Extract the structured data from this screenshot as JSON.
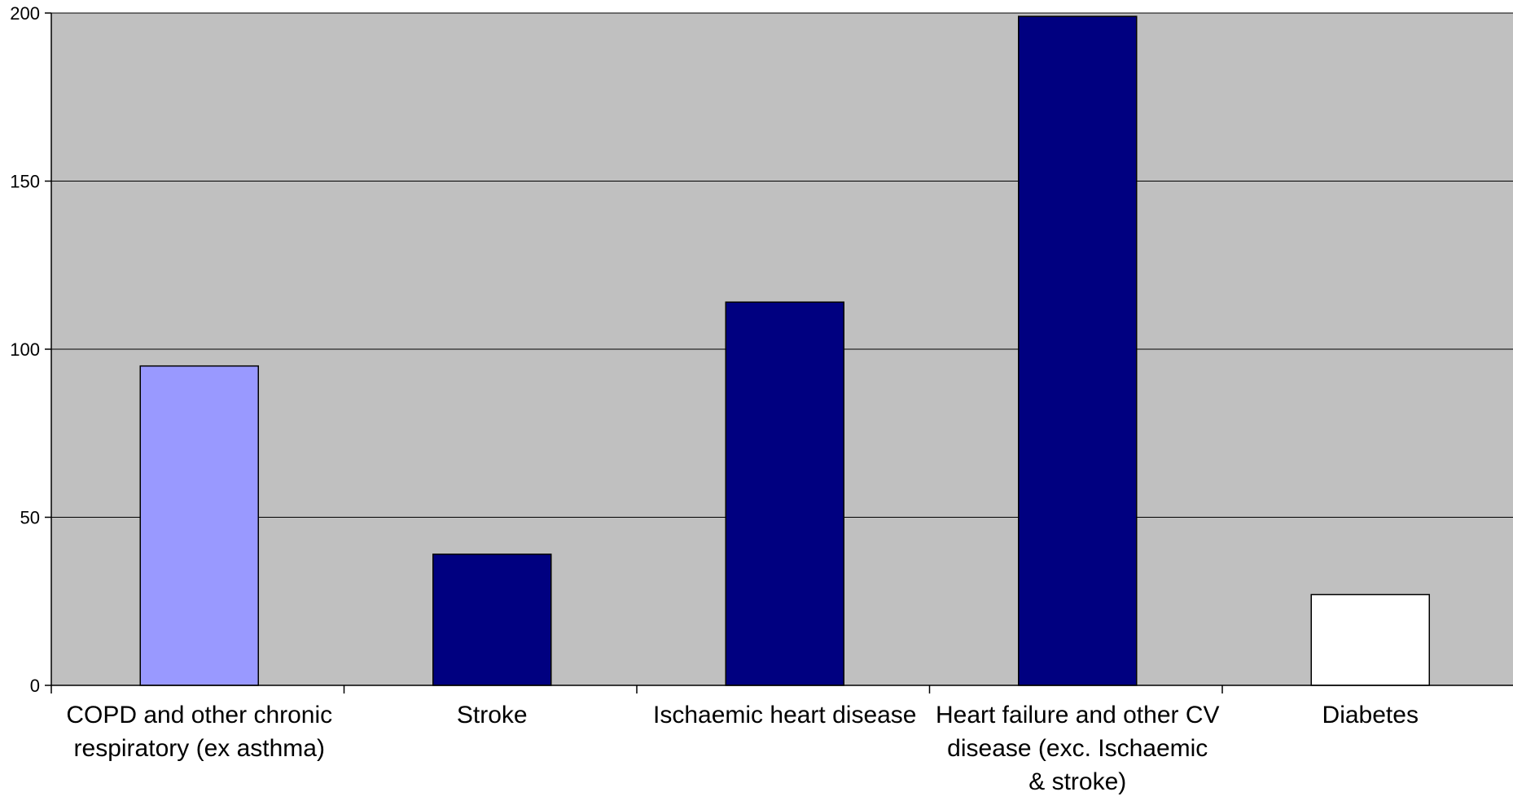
{
  "chart_data": {
    "type": "bar",
    "title": "",
    "xlabel": "",
    "ylabel": "",
    "ylim": [
      0,
      200
    ],
    "yticks": [
      0,
      50,
      100,
      150,
      200
    ],
    "grid": true,
    "legend": "none",
    "categories": [
      [
        "COPD and other chronic",
        "respiratory (ex asthma)"
      ],
      [
        "Stroke"
      ],
      [
        "Ischaemic heart disease"
      ],
      [
        "Heart failure and other CV",
        "disease (exc. Ischaemic",
        "& stroke)"
      ],
      [
        "Diabetes"
      ]
    ],
    "values": [
      95,
      39,
      114,
      199,
      27
    ],
    "bar_colors": [
      "#9999ff",
      "#000080",
      "#000080",
      "#000080",
      "#ffffff"
    ],
    "plot_background": "#c0c0c0",
    "gridline_color": "#000000"
  }
}
